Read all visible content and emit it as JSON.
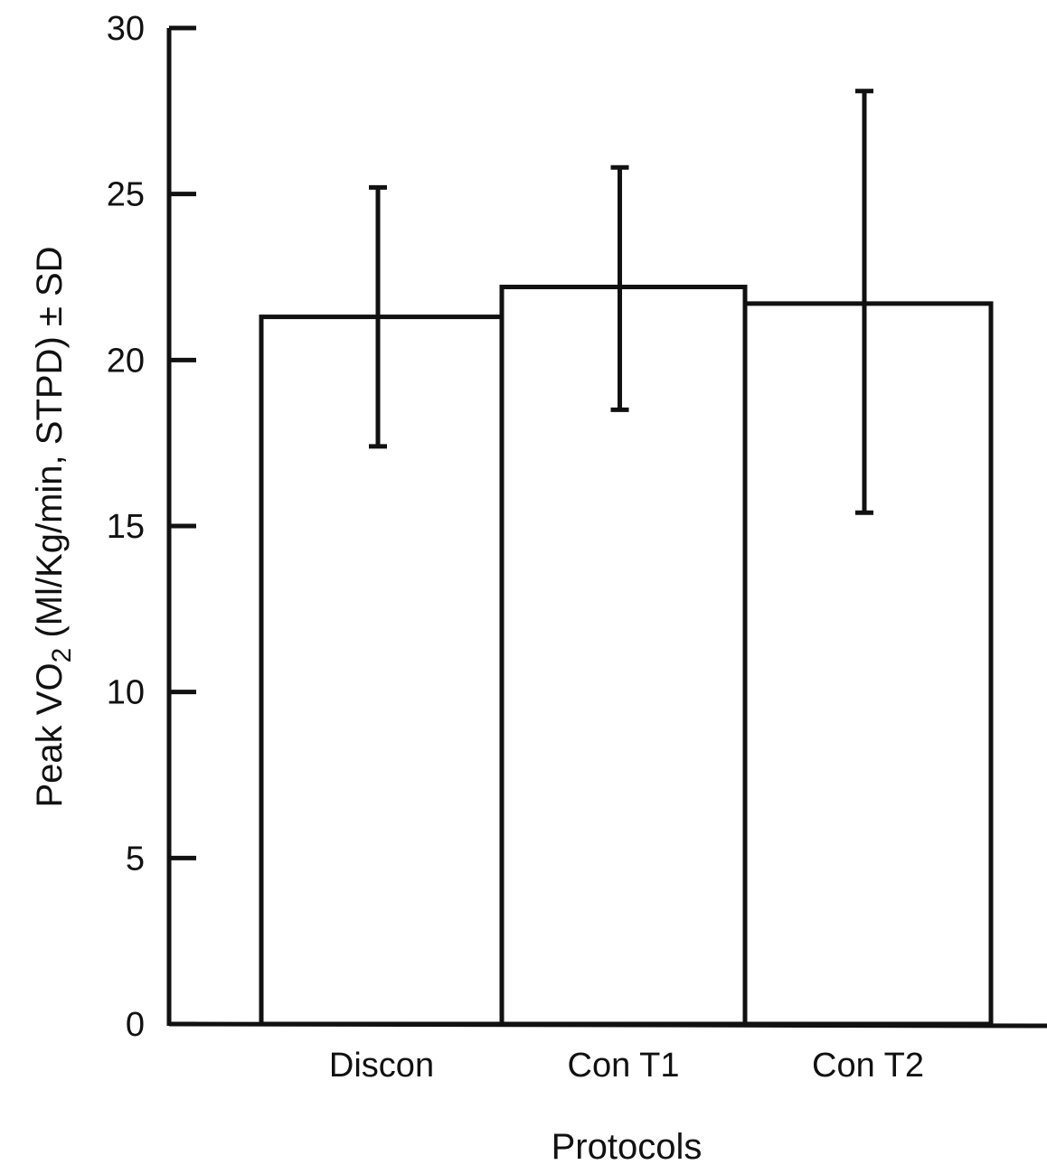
{
  "chart_data": {
    "type": "bar",
    "categories": [
      "Discon",
      "Con T1",
      "Con T2"
    ],
    "values": [
      21.3,
      22.2,
      21.7
    ],
    "error_low": [
      17.4,
      18.5,
      15.4
    ],
    "error_high": [
      25.2,
      25.8,
      28.1
    ],
    "xlabel": "Protocols",
    "ylabel": {
      "prefix": "Peak ",
      "symbol": "V",
      "main": "O",
      "subscript": "2",
      "suffix": " (Ml/Kg/min, STPD) ± SD"
    },
    "ylim": [
      0,
      30
    ],
    "yticks": [
      "0",
      "5",
      "10",
      "15",
      "20",
      "25",
      "30"
    ],
    "grid": false,
    "legend": "none",
    "colors": {
      "bar_fill": "#ffffff",
      "stroke": "#111111"
    }
  }
}
